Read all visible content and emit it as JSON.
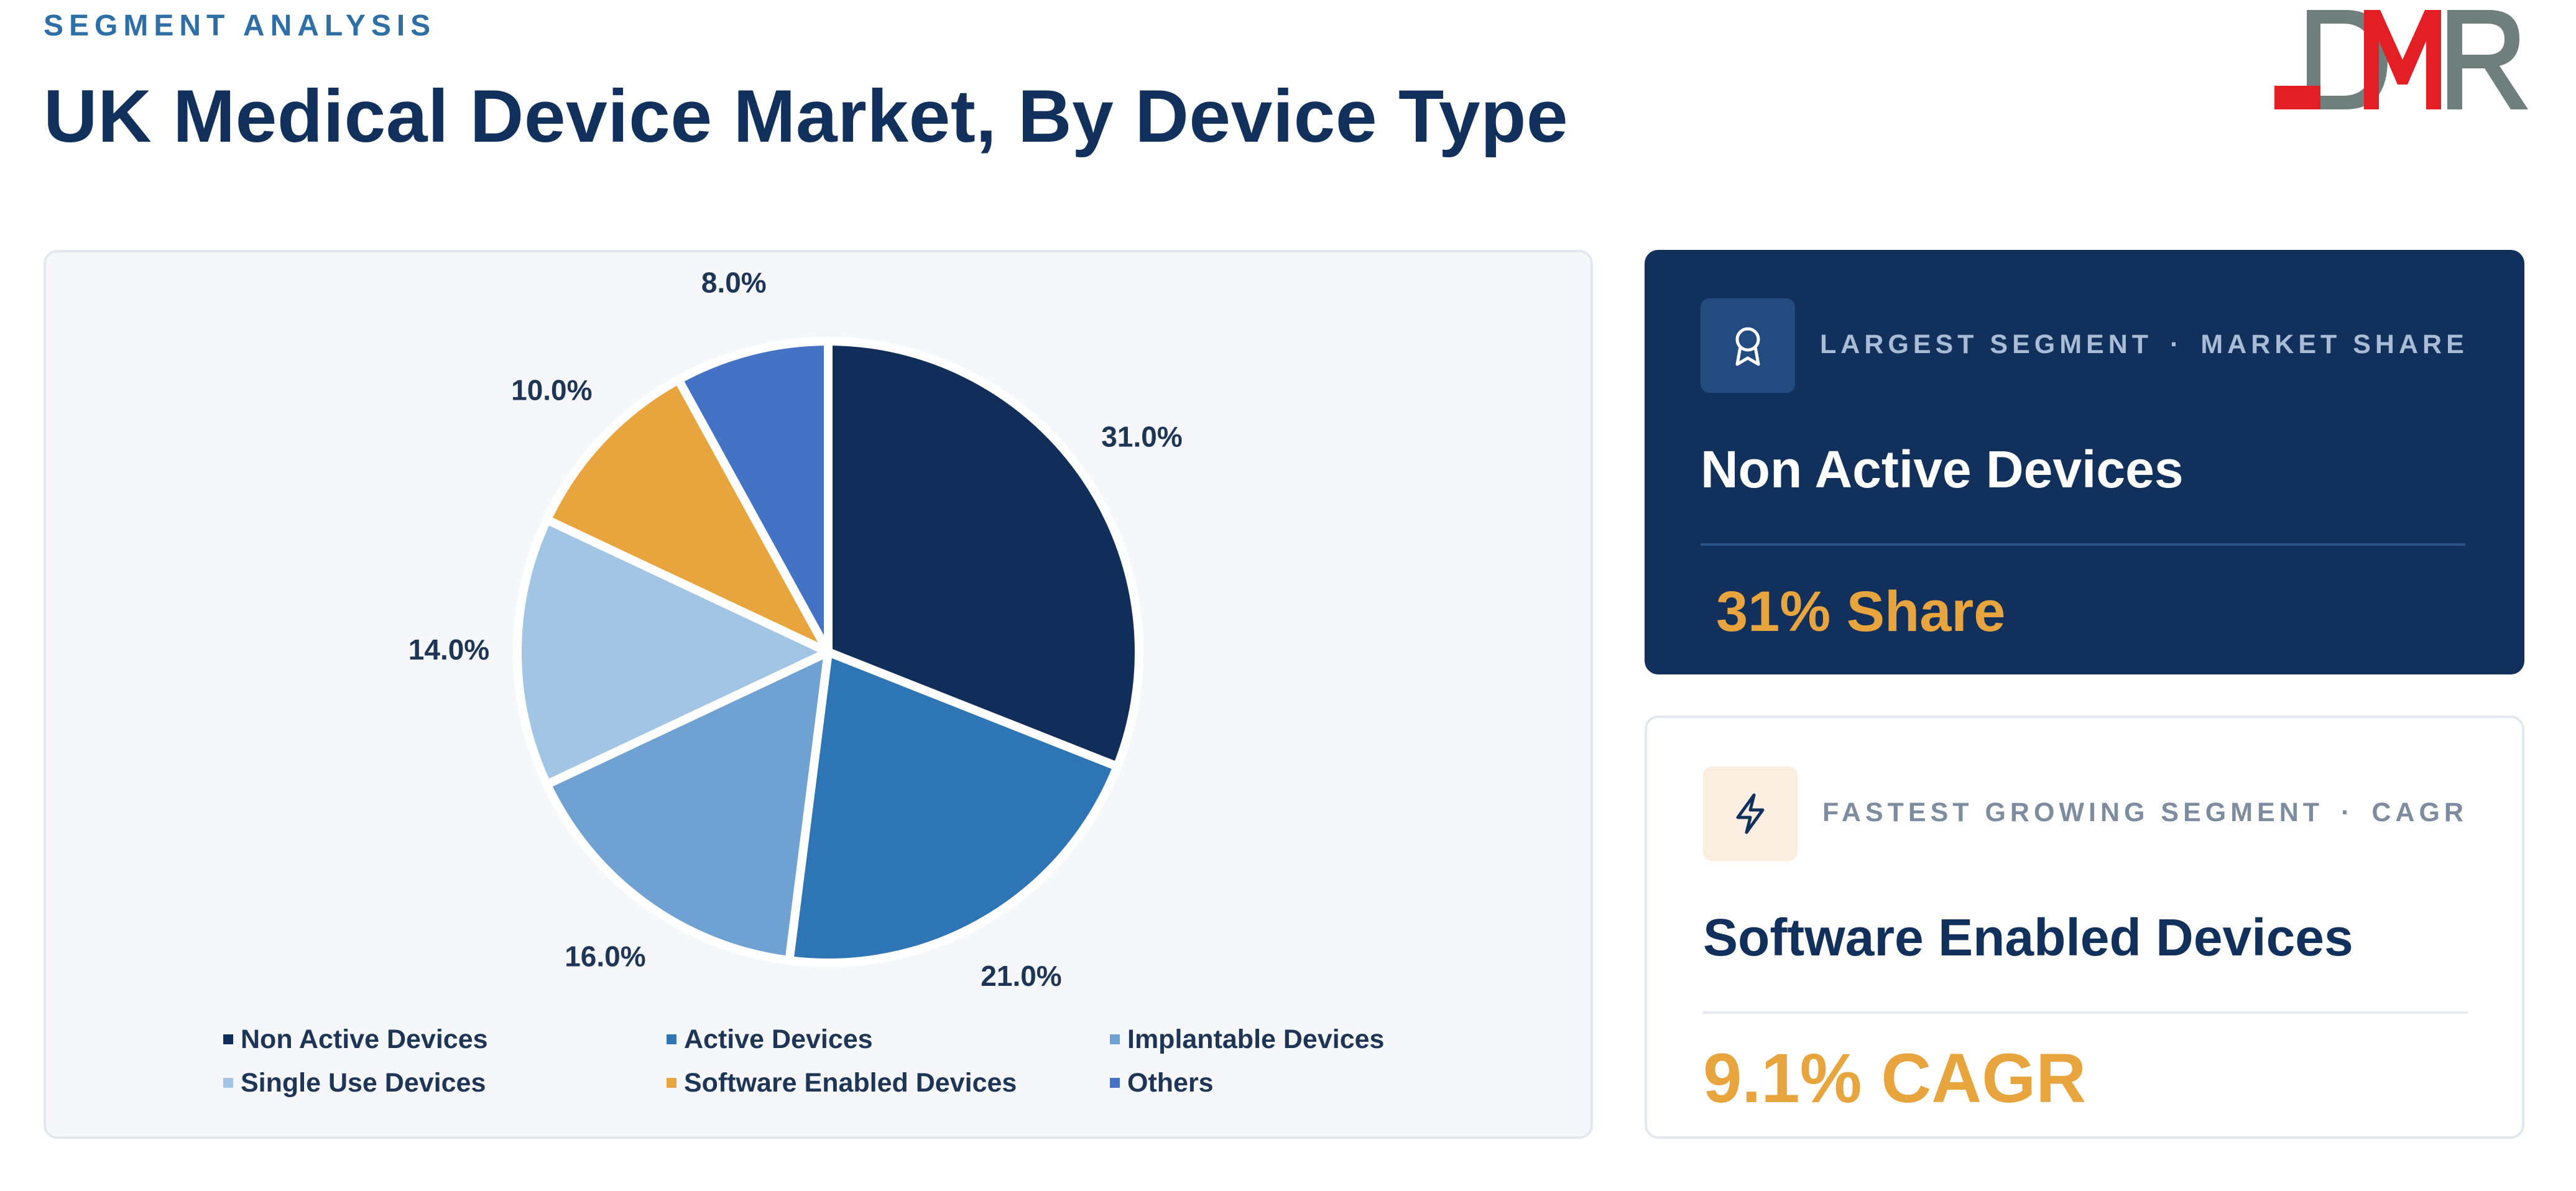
{
  "header": {
    "eyebrow": "SEGMENT ANALYSIS",
    "title": "UK Medical Device Market, By Device Type"
  },
  "logo": {
    "text": "DMR",
    "colors": {
      "grey": "#6e7f7c",
      "red": "#e31e24"
    }
  },
  "chart_data": {
    "type": "pie",
    "title": "",
    "start_angle_deg": 0,
    "direction": "clockwise",
    "slices": [
      {
        "label": "Non Active Devices",
        "value": 31.0,
        "value_label": "31.0%",
        "color": "#112d5a"
      },
      {
        "label": "Active Devices",
        "value": 21.0,
        "value_label": "21.0%",
        "color": "#2e75b5"
      },
      {
        "label": "Implantable Devices",
        "value": 16.0,
        "value_label": "16.0%",
        "color": "#6fa2d3"
      },
      {
        "label": "Single Use Devices",
        "value": 14.0,
        "value_label": "14.0%",
        "color": "#a2c5e5"
      },
      {
        "label": "Software Enabled Devices",
        "value": 10.0,
        "value_label": "10.0%",
        "color": "#e8a53d"
      },
      {
        "label": "Others",
        "value": 8.0,
        "value_label": "8.0%",
        "color": "#4472c4"
      }
    ],
    "legend_position": "bottom"
  },
  "cards": {
    "largest": {
      "label_left": "LARGEST SEGMENT",
      "separator": "·",
      "label_right": "MARKET SHARE",
      "name": "Non Active Devices",
      "value": "31% Share",
      "icon": "award-ribbon-icon"
    },
    "fastest": {
      "label_left": "FASTEST GROWING SEGMENT",
      "separator": "·",
      "label_right": "CAGR",
      "name": "Software Enabled Devices",
      "value": "9.1% CAGR",
      "icon": "lightning-bolt-icon"
    }
  },
  "colors": {
    "navy": "#12305c",
    "accent_orange": "#e8a53d",
    "eyebrow_blue": "#2f6fa8"
  }
}
